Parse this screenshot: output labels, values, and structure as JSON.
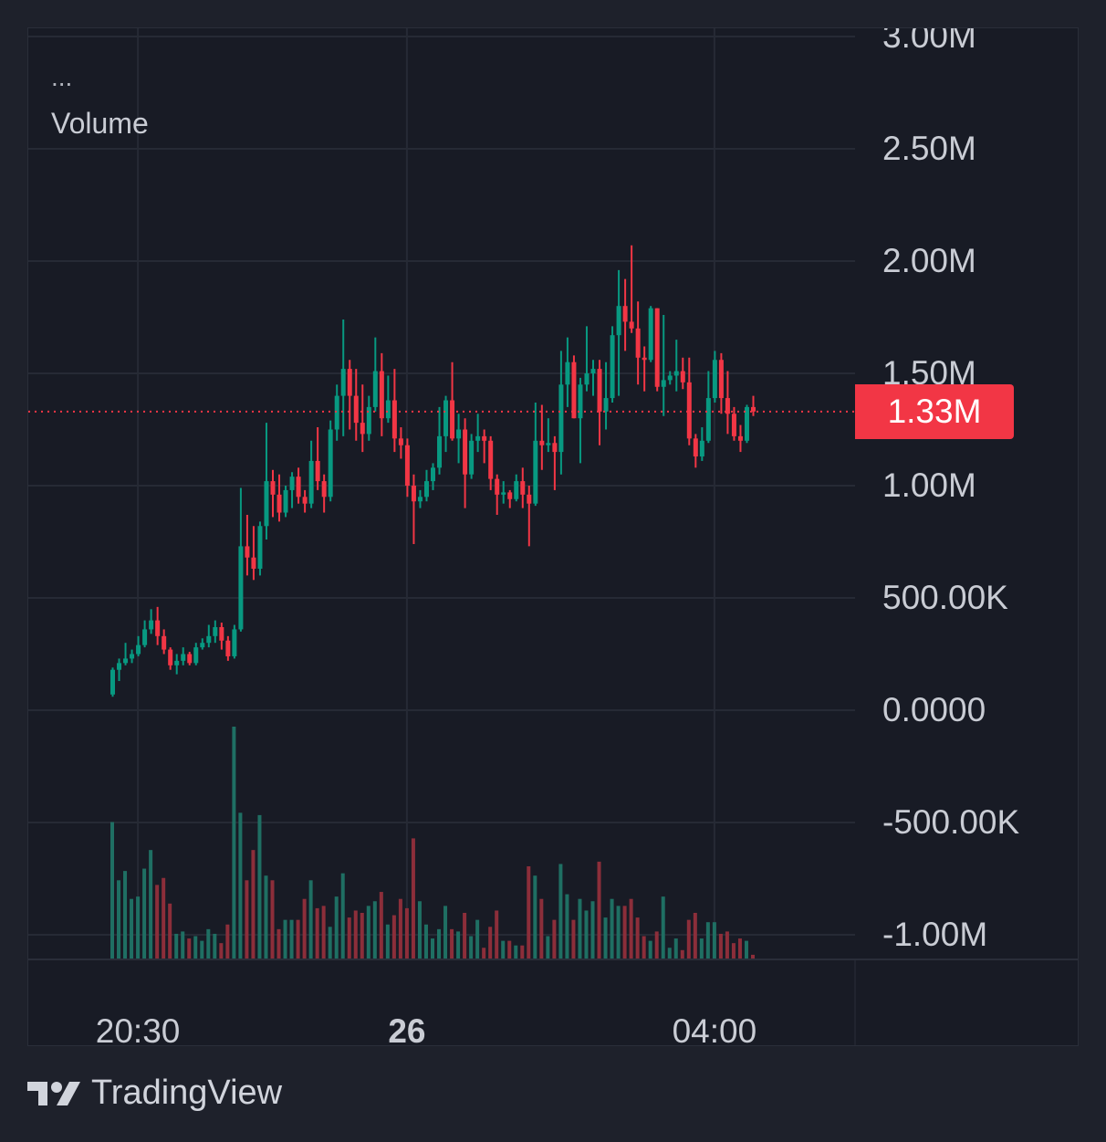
{
  "legend": {
    "more": "...",
    "title": "Volume"
  },
  "brand": {
    "name": "TradingView"
  },
  "colors": {
    "up": "#089981",
    "down": "#f23645",
    "up_volume": "#1f6f63",
    "down_volume": "#8c2e3a",
    "grid": "#262a35",
    "background": "#181b25"
  },
  "chart_data": {
    "type": "candlestick",
    "title": "",
    "ylim": [
      -1.0,
      3.0
    ],
    "y_unit": "M",
    "grid": true,
    "y_ticks": [
      {
        "value": 3.0,
        "label": "3.00M"
      },
      {
        "value": 2.5,
        "label": "2.50M"
      },
      {
        "value": 2.0,
        "label": "2.00M"
      },
      {
        "value": 1.5,
        "label": "1.50M"
      },
      {
        "value": 1.0,
        "label": "1.00M"
      },
      {
        "value": 0.5,
        "label": "500.00K"
      },
      {
        "value": 0.0,
        "label": "0.0000"
      },
      {
        "value": -0.5,
        "label": "-500.00K"
      },
      {
        "value": -1.0,
        "label": "-1.00M"
      }
    ],
    "x_ticks": [
      {
        "index": 4,
        "label": "20:30",
        "bold": false
      },
      {
        "index": 46,
        "label": "26",
        "bold": true
      },
      {
        "index": 94,
        "label": "04:00",
        "bold": false
      }
    ],
    "last_price": {
      "value": 1.33,
      "label": "1.33M"
    },
    "ohlc": [
      [
        0.07,
        0.19,
        0.06,
        0.18
      ],
      [
        0.18,
        0.23,
        0.13,
        0.21
      ],
      [
        0.21,
        0.3,
        0.2,
        0.23
      ],
      [
        0.23,
        0.27,
        0.21,
        0.25
      ],
      [
        0.25,
        0.33,
        0.24,
        0.29
      ],
      [
        0.29,
        0.4,
        0.28,
        0.36
      ],
      [
        0.36,
        0.45,
        0.34,
        0.4
      ],
      [
        0.4,
        0.46,
        0.29,
        0.33
      ],
      [
        0.33,
        0.36,
        0.25,
        0.27
      ],
      [
        0.27,
        0.28,
        0.18,
        0.2
      ],
      [
        0.2,
        0.25,
        0.16,
        0.22
      ],
      [
        0.22,
        0.28,
        0.2,
        0.25
      ],
      [
        0.25,
        0.26,
        0.2,
        0.21
      ],
      [
        0.21,
        0.3,
        0.2,
        0.28
      ],
      [
        0.28,
        0.32,
        0.27,
        0.3
      ],
      [
        0.3,
        0.38,
        0.28,
        0.33
      ],
      [
        0.33,
        0.4,
        0.3,
        0.37
      ],
      [
        0.37,
        0.39,
        0.27,
        0.31
      ],
      [
        0.31,
        0.33,
        0.22,
        0.24
      ],
      [
        0.24,
        0.38,
        0.23,
        0.36
      ],
      [
        0.36,
        0.99,
        0.35,
        0.73
      ],
      [
        0.73,
        0.87,
        0.6,
        0.68
      ],
      [
        0.68,
        0.82,
        0.58,
        0.63
      ],
      [
        0.63,
        0.84,
        0.6,
        0.82
      ],
      [
        0.82,
        1.28,
        0.76,
        1.02
      ],
      [
        1.02,
        1.07,
        0.86,
        0.96
      ],
      [
        0.96,
        1.05,
        0.84,
        0.88
      ],
      [
        0.88,
        1.0,
        0.86,
        0.98
      ],
      [
        0.98,
        1.06,
        0.9,
        1.04
      ],
      [
        1.04,
        1.08,
        0.92,
        0.95
      ],
      [
        0.95,
        0.98,
        0.88,
        0.92
      ],
      [
        0.92,
        1.2,
        0.9,
        1.11
      ],
      [
        1.11,
        1.26,
        0.98,
        1.02
      ],
      [
        1.02,
        1.05,
        0.88,
        0.95
      ],
      [
        0.95,
        1.29,
        0.93,
        1.25
      ],
      [
        1.25,
        1.45,
        1.2,
        1.4
      ],
      [
        1.4,
        1.74,
        1.22,
        1.52
      ],
      [
        1.52,
        1.56,
        1.25,
        1.4
      ],
      [
        1.4,
        1.52,
        1.2,
        1.28
      ],
      [
        1.28,
        1.45,
        1.15,
        1.23
      ],
      [
        1.23,
        1.4,
        1.2,
        1.35
      ],
      [
        1.35,
        1.66,
        1.33,
        1.51
      ],
      [
        1.51,
        1.59,
        1.22,
        1.3
      ],
      [
        1.3,
        1.49,
        1.28,
        1.38
      ],
      [
        1.38,
        1.52,
        1.15,
        1.21
      ],
      [
        1.21,
        1.26,
        1.12,
        1.18
      ],
      [
        1.18,
        1.21,
        0.95,
        1.0
      ],
      [
        1.0,
        1.05,
        0.74,
        0.93
      ],
      [
        0.93,
        0.98,
        0.9,
        0.95
      ],
      [
        0.95,
        1.07,
        0.93,
        1.02
      ],
      [
        1.02,
        1.1,
        0.98,
        1.08
      ],
      [
        1.08,
        1.35,
        1.05,
        1.22
      ],
      [
        1.22,
        1.4,
        1.15,
        1.38
      ],
      [
        1.38,
        1.55,
        1.2,
        1.21
      ],
      [
        1.21,
        1.32,
        1.1,
        1.25
      ],
      [
        1.25,
        1.3,
        0.9,
        1.05
      ],
      [
        1.05,
        1.23,
        1.03,
        1.2
      ],
      [
        1.2,
        1.32,
        1.15,
        1.22
      ],
      [
        1.22,
        1.25,
        1.1,
        1.2
      ],
      [
        1.2,
        1.22,
        0.98,
        1.03
      ],
      [
        1.03,
        1.05,
        0.87,
        0.96
      ],
      [
        0.96,
        1.02,
        0.92,
        0.97
      ],
      [
        0.97,
        0.98,
        0.9,
        0.94
      ],
      [
        0.94,
        1.05,
        0.93,
        1.02
      ],
      [
        1.02,
        1.08,
        0.9,
        0.96
      ],
      [
        0.96,
        1.0,
        0.73,
        0.92
      ],
      [
        0.92,
        1.37,
        0.91,
        1.2
      ],
      [
        1.2,
        1.36,
        1.07,
        1.18
      ],
      [
        1.18,
        1.3,
        1.15,
        1.19
      ],
      [
        1.19,
        1.22,
        0.98,
        1.15
      ],
      [
        1.15,
        1.6,
        1.05,
        1.45
      ],
      [
        1.45,
        1.66,
        1.35,
        1.55
      ],
      [
        1.55,
        1.58,
        1.3,
        1.3
      ],
      [
        1.3,
        1.48,
        1.1,
        1.45
      ],
      [
        1.45,
        1.71,
        1.42,
        1.5
      ],
      [
        1.5,
        1.56,
        1.4,
        1.52
      ],
      [
        1.52,
        1.56,
        1.18,
        1.33
      ],
      [
        1.33,
        1.55,
        1.25,
        1.39
      ],
      [
        1.39,
        1.71,
        1.37,
        1.67
      ],
      [
        1.67,
        1.96,
        1.4,
        1.8
      ],
      [
        1.8,
        1.92,
        1.6,
        1.73
      ],
      [
        1.73,
        2.07,
        1.68,
        1.7
      ],
      [
        1.7,
        1.82,
        1.45,
        1.57
      ],
      [
        1.57,
        1.62,
        1.42,
        1.56
      ],
      [
        1.56,
        1.8,
        1.55,
        1.79
      ],
      [
        1.79,
        1.79,
        1.42,
        1.44
      ],
      [
        1.44,
        1.76,
        1.31,
        1.47
      ],
      [
        1.47,
        1.51,
        1.45,
        1.49
      ],
      [
        1.49,
        1.65,
        1.42,
        1.51
      ],
      [
        1.51,
        1.57,
        1.43,
        1.46
      ],
      [
        1.46,
        1.57,
        1.18,
        1.21
      ],
      [
        1.21,
        1.23,
        1.08,
        1.13
      ],
      [
        1.13,
        1.26,
        1.11,
        1.2
      ],
      [
        1.2,
        1.51,
        1.19,
        1.39
      ],
      [
        1.39,
        1.6,
        1.37,
        1.56
      ],
      [
        1.56,
        1.59,
        1.32,
        1.39
      ],
      [
        1.39,
        1.51,
        1.23,
        1.32
      ],
      [
        1.32,
        1.35,
        1.2,
        1.22
      ],
      [
        1.22,
        1.27,
        1.15,
        1.2
      ],
      [
        1.2,
        1.36,
        1.19,
        1.35
      ],
      [
        1.35,
        1.4,
        1.31,
        1.33
      ]
    ],
    "volume_relative": [
      59,
      34,
      38,
      26,
      27,
      39,
      47,
      32,
      35,
      24,
      11,
      12,
      9,
      10,
      8,
      13,
      11,
      7,
      15,
      100,
      63,
      34,
      47,
      62,
      36,
      34,
      13,
      17,
      17,
      17,
      26,
      34,
      22,
      23,
      14,
      27,
      37,
      18,
      21,
      20,
      23,
      25,
      29,
      15,
      19,
      26,
      22,
      52,
      25,
      15,
      9,
      13,
      23,
      13,
      12,
      20,
      10,
      17,
      5,
      14,
      21,
      8,
      8,
      6,
      6,
      40,
      36,
      26,
      10,
      17,
      41,
      28,
      17,
      26,
      21,
      25,
      42,
      18,
      26,
      23,
      23,
      26,
      18,
      10,
      8,
      12,
      27,
      5,
      9,
      4,
      17,
      20,
      9,
      16,
      16,
      11,
      12,
      7,
      9,
      8,
      2
    ]
  }
}
